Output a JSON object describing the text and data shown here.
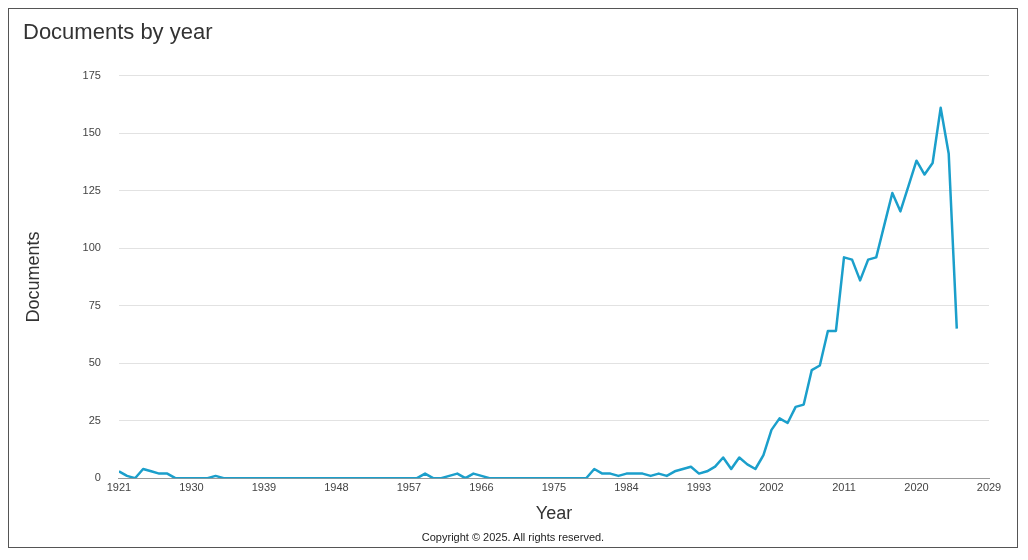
{
  "chart_data": {
    "type": "line",
    "title": "Documents by year",
    "xlabel": "Year",
    "ylabel": "Documents",
    "annotations": [
      "Copyright © 2025. All rights reserved."
    ],
    "x": [
      1921,
      1922,
      1923,
      1924,
      1925,
      1926,
      1927,
      1928,
      1929,
      1930,
      1931,
      1932,
      1933,
      1934,
      1935,
      1936,
      1937,
      1938,
      1939,
      1940,
      1941,
      1942,
      1943,
      1944,
      1945,
      1946,
      1947,
      1948,
      1949,
      1950,
      1951,
      1952,
      1953,
      1954,
      1955,
      1956,
      1957,
      1958,
      1959,
      1960,
      1961,
      1962,
      1963,
      1964,
      1965,
      1966,
      1967,
      1968,
      1969,
      1970,
      1971,
      1972,
      1973,
      1974,
      1975,
      1976,
      1977,
      1978,
      1979,
      1980,
      1981,
      1982,
      1983,
      1984,
      1985,
      1986,
      1987,
      1988,
      1989,
      1990,
      1991,
      1992,
      1993,
      1994,
      1995,
      1996,
      1997,
      1998,
      1999,
      2000,
      2001,
      2002,
      2003,
      2004,
      2005,
      2006,
      2007,
      2008,
      2009,
      2010,
      2011,
      2012,
      2013,
      2014,
      2015,
      2016,
      2017,
      2018,
      2019,
      2020,
      2021,
      2022,
      2023,
      2024,
      2025
    ],
    "series": [
      {
        "color": "#1b9fcb",
        "values": [
          3,
          1,
          0,
          4,
          3,
          2,
          2,
          0,
          0,
          0,
          0,
          0,
          1,
          0,
          0,
          0,
          0,
          0,
          0,
          0,
          0,
          0,
          0,
          0,
          0,
          0,
          0,
          0,
          0,
          0,
          0,
          0,
          0,
          0,
          0,
          0,
          0,
          0,
          2,
          0,
          0,
          1,
          2,
          0,
          2,
          1,
          0,
          0,
          0,
          0,
          0,
          0,
          0,
          0,
          0,
          0,
          0,
          0,
          0,
          4,
          2,
          2,
          1,
          2,
          2,
          2,
          1,
          2,
          1,
          3,
          4,
          5,
          2,
          3,
          5,
          9,
          4,
          9,
          6,
          4,
          10,
          21,
          26,
          24,
          31,
          32,
          47,
          49,
          64,
          64,
          96,
          95,
          86,
          95,
          96,
          110,
          124,
          116,
          127,
          138,
          132,
          137,
          161,
          141,
          65
        ]
      }
    ],
    "xlim": [
      1921,
      2029
    ],
    "xticks": [
      1921,
      1930,
      1939,
      1948,
      1957,
      1966,
      1975,
      1984,
      1993,
      2002,
      2011,
      2020,
      2029
    ],
    "ylim": [
      0,
      175
    ],
    "yticks": [
      0,
      25,
      50,
      75,
      100,
      125,
      150,
      175
    ],
    "grid": "y",
    "legend": false,
    "marker": "none",
    "line_style": "solid"
  }
}
